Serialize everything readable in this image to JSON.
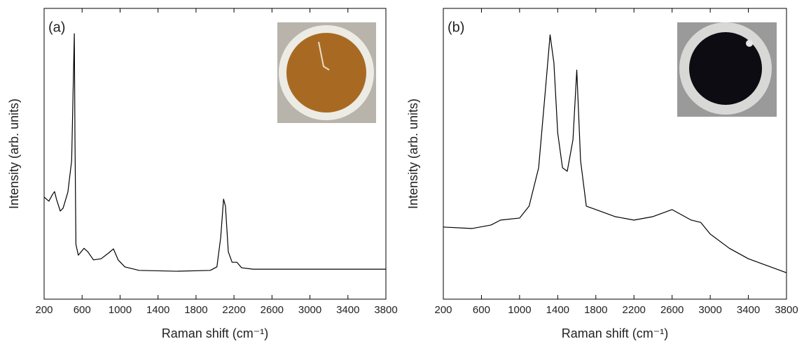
{
  "chart_data": [
    {
      "type": "line",
      "annotation": "(a)",
      "xlabel": "Raman shift (cm⁻¹)",
      "ylabel": "Intensity (arb. units)",
      "xlim": [
        200,
        3800
      ],
      "xticks": [
        200,
        600,
        1000,
        1400,
        1800,
        2200,
        2600,
        3000,
        3400,
        3800
      ],
      "ylim": [
        0,
        100
      ],
      "series": [
        {
          "color": "#000000",
          "x": [
            200,
            250,
            290,
            310,
            330,
            370,
            400,
            450,
            490,
            510,
            518,
            525,
            535,
            560,
            620,
            660,
            720,
            800,
            880,
            930,
            980,
            1050,
            1200,
            1600,
            1950,
            2020,
            2060,
            2090,
            2110,
            2140,
            2180,
            2230,
            2280,
            2400,
            3800
          ],
          "values": [
            35.1,
            33.7,
            36.1,
            37,
            34.4,
            30.3,
            31.3,
            36.8,
            47.6,
            78.8,
            91.3,
            54.8,
            18.8,
            15.1,
            17.5,
            16.3,
            13.5,
            13.9,
            15.9,
            17.3,
            13.5,
            11.1,
            9.9,
            9.6,
            9.9,
            11.1,
            21.2,
            34.4,
            32,
            16.3,
            12.7,
            12.7,
            10.8,
            10.3,
            10.3
          ]
        }
      ]
    },
    {
      "type": "line",
      "annotation": "(b)",
      "xlabel": "Raman shift (cm⁻¹)",
      "ylabel": "Intensity (arb. units)",
      "xlim": [
        200,
        3800
      ],
      "xticks": [
        200,
        600,
        1000,
        1400,
        1800,
        2200,
        2600,
        3000,
        3400,
        3800
      ],
      "ylim": [
        0,
        100
      ],
      "series": [
        {
          "color": "#000000",
          "x": [
            200,
            500,
            700,
            800,
            1000,
            1100,
            1200,
            1270,
            1320,
            1360,
            1400,
            1450,
            1500,
            1560,
            1600,
            1640,
            1700,
            1800,
            2000,
            2200,
            2400,
            2600,
            2800,
            2900,
            3000,
            3200,
            3400,
            3600,
            3800
          ],
          "values": [
            24.8,
            24.3,
            25.5,
            27.2,
            27.9,
            32,
            45.2,
            71.6,
            90.9,
            81.3,
            57.2,
            45.2,
            44,
            54.8,
            78.8,
            47.6,
            32,
            30.8,
            28.4,
            27.2,
            28.4,
            30.8,
            27.2,
            26.4,
            22.4,
            17.5,
            13.9,
            11.5,
            9.1
          ]
        }
      ]
    }
  ]
}
